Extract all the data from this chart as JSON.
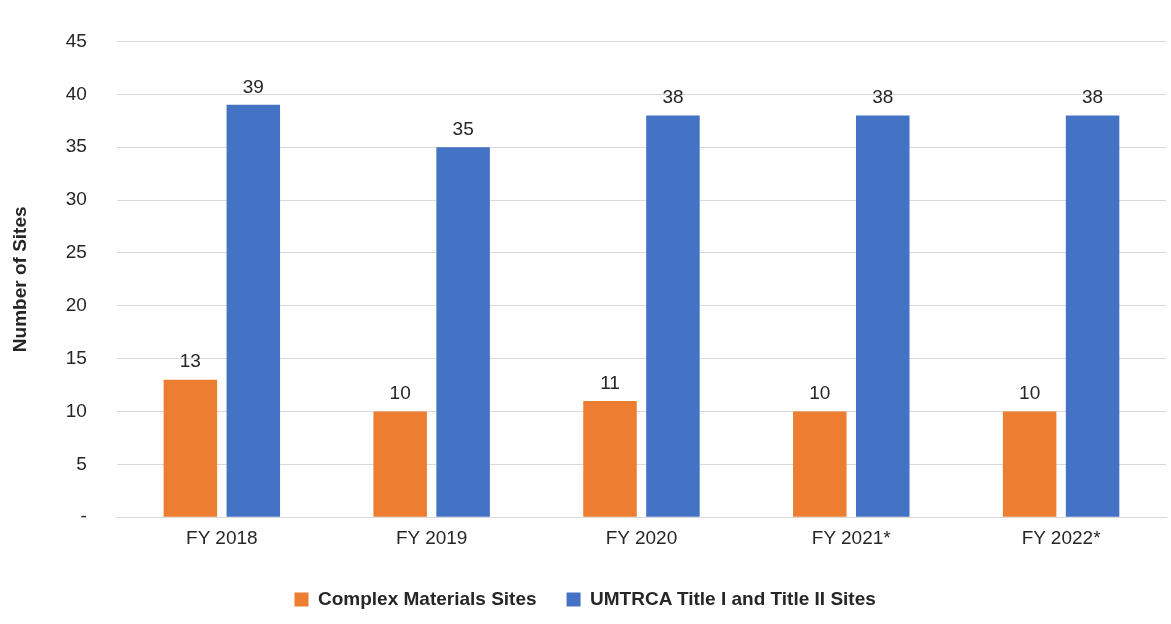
{
  "chart_data": {
    "type": "bar",
    "ylabel": "Number of Sites",
    "categories": [
      "FY 2018",
      "FY 2019",
      "FY 2020",
      "FY 2021*",
      "FY 2022*"
    ],
    "series": [
      {
        "name": "Complex Materials Sites",
        "color": "#ed7d31",
        "values": [
          13,
          10,
          11,
          10,
          10
        ]
      },
      {
        "name": "UMTRCA Title I and Title II Sites",
        "color": "#4472c4",
        "values": [
          39,
          35,
          38,
          38,
          38
        ]
      }
    ],
    "ylim": [
      0,
      45
    ],
    "yticks": [
      {
        "value": 0,
        "label": "-"
      },
      5,
      10,
      15,
      20,
      25,
      30,
      35,
      40,
      45
    ],
    "grid": "y",
    "legend": "bottom",
    "data_labels": true
  }
}
